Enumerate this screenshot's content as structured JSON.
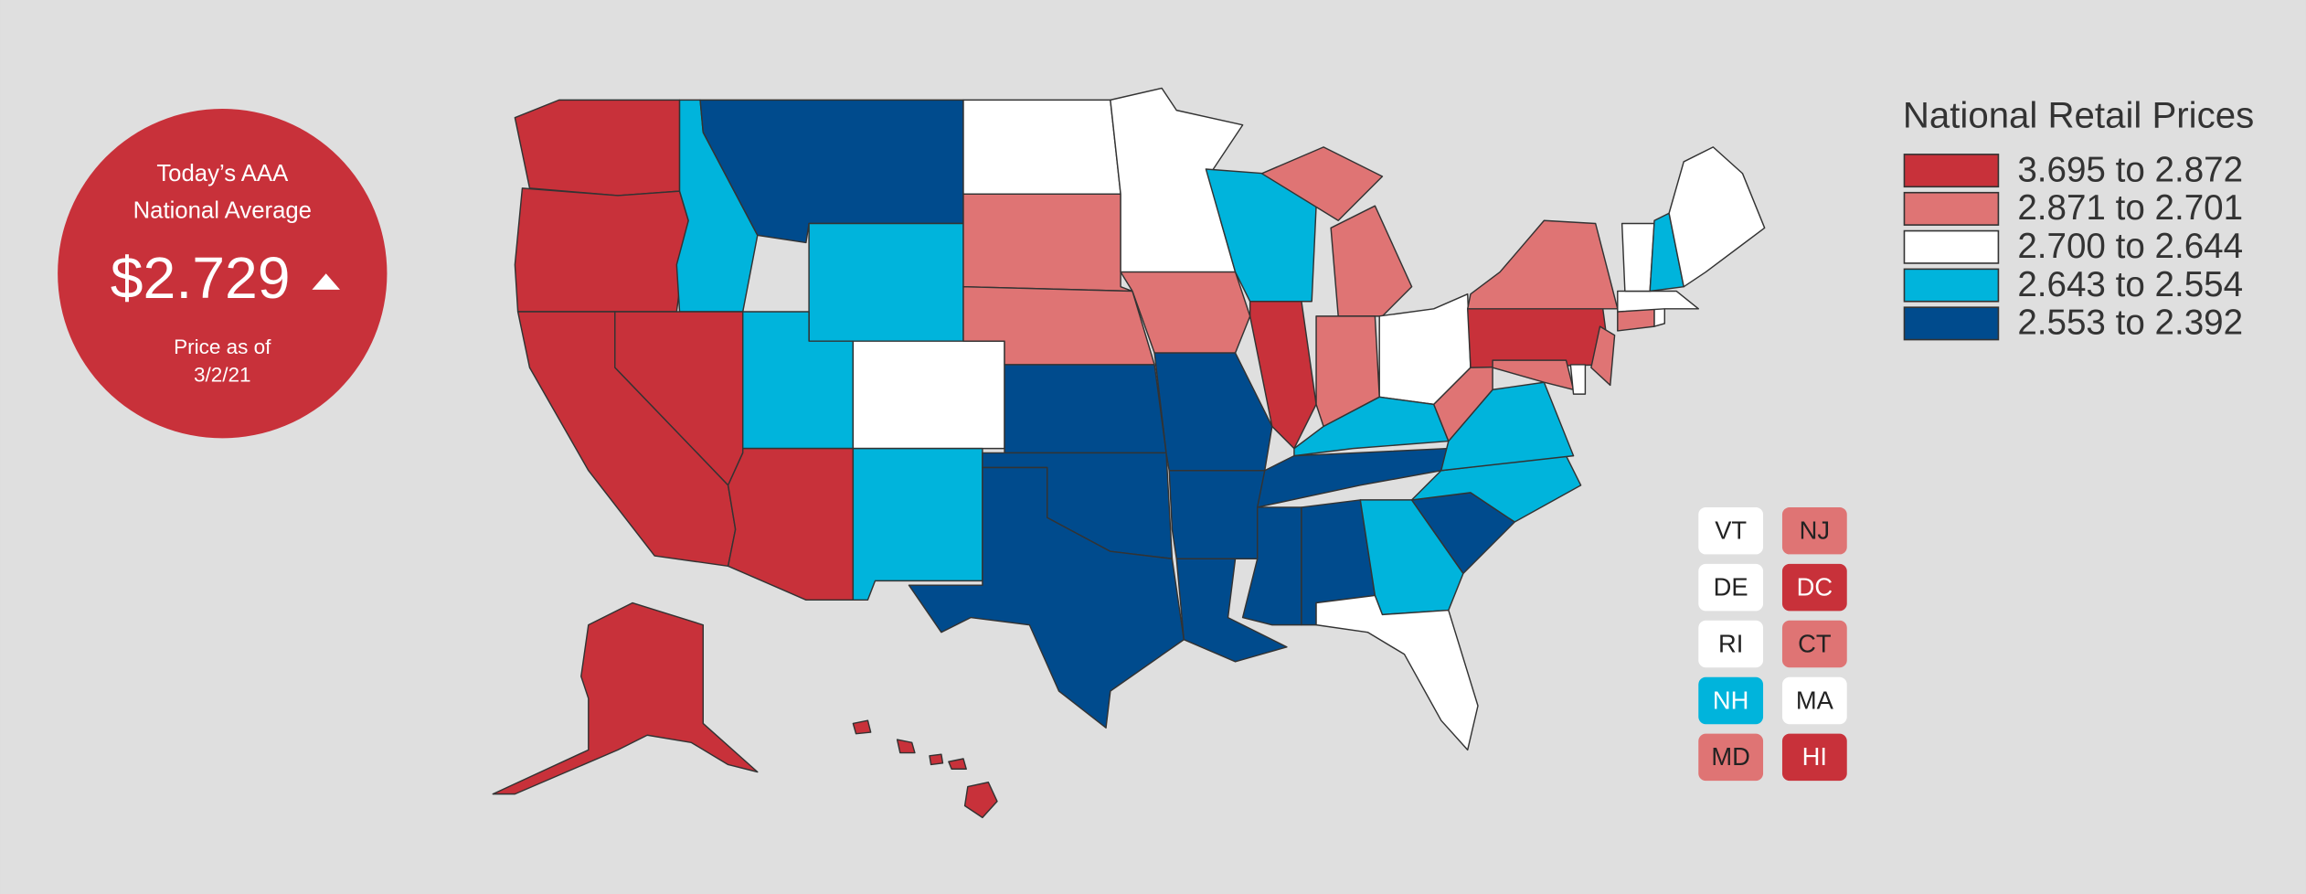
{
  "badge": {
    "line1": "Today’s AAA",
    "line2": "National Average",
    "price": "$2.729",
    "date_label": "Price as of",
    "date": "3/2/21"
  },
  "legend": {
    "title": "National Retail Prices",
    "items": [
      {
        "label": "3.695 to 2.872",
        "color": "#c8313a"
      },
      {
        "label": "2.871 to 2.701",
        "color": "#df7474"
      },
      {
        "label": "2.700 to 2.644",
        "color": "#ffffff"
      },
      {
        "label": "2.643 to 2.554",
        "color": "#00b4dc"
      },
      {
        "label": "2.553 to 2.392",
        "color": "#004b8d"
      }
    ]
  },
  "map": {
    "state_tiers": [
      0,
      0,
      3,
      4,
      3,
      0,
      0,
      3,
      0,
      2,
      3,
      2,
      1,
      1,
      4,
      4,
      4,
      2,
      1,
      4,
      4,
      4,
      3,
      0,
      1,
      1,
      2,
      3,
      4,
      4,
      4,
      3,
      2,
      4,
      3,
      3,
      1,
      0,
      1,
      1,
      2,
      1,
      1,
      2,
      2,
      2,
      3,
      2,
      0,
      0
    ]
  },
  "buttons": [
    {
      "label": "VT",
      "tier": 2
    },
    {
      "label": "NJ",
      "tier": 1
    },
    {
      "label": "DE",
      "tier": 2
    },
    {
      "label": "DC",
      "tier": 0
    },
    {
      "label": "RI",
      "tier": 2
    },
    {
      "label": "CT",
      "tier": 1
    },
    {
      "label": "NH",
      "tier": 3
    },
    {
      "label": "MA",
      "tier": 2
    },
    {
      "label": "MD",
      "tier": 1
    },
    {
      "label": "HI",
      "tier": 0
    }
  ]
}
